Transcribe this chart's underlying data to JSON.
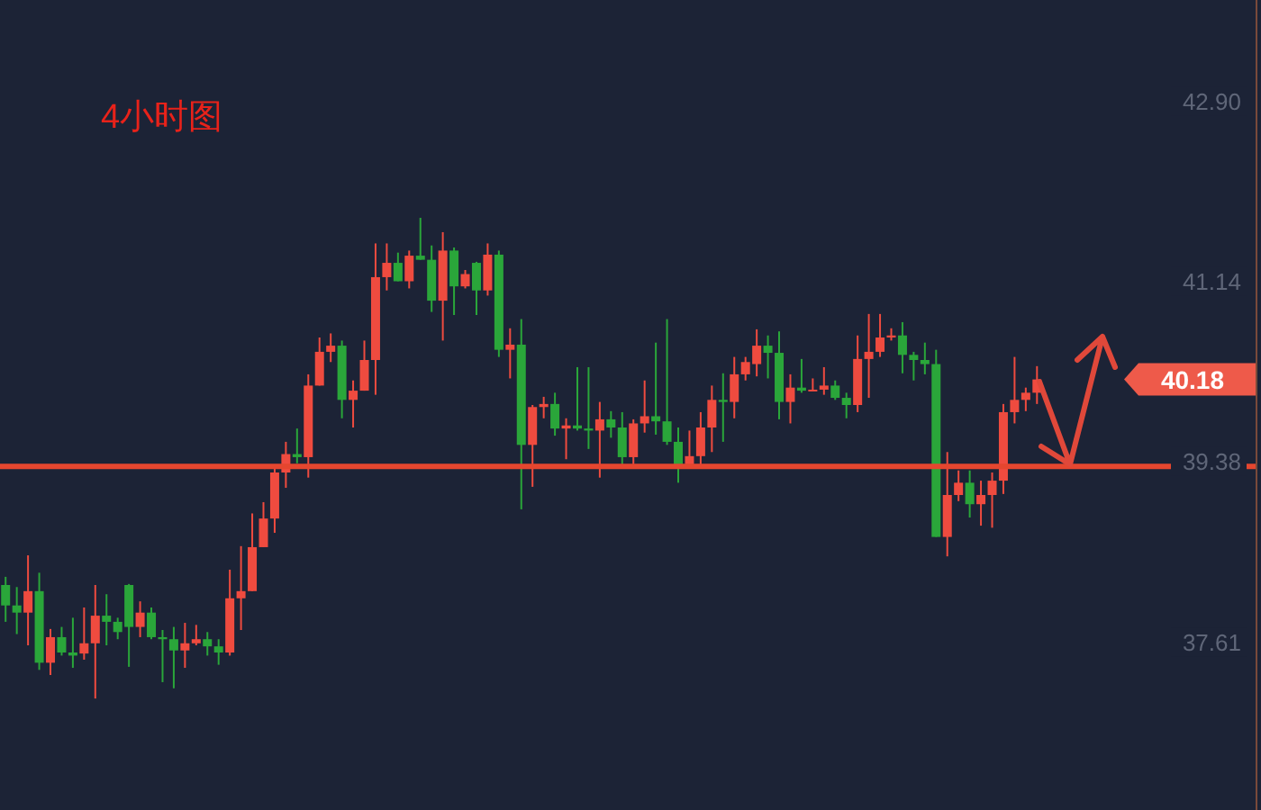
{
  "chart_data": {
    "type": "candlestick",
    "title": "4小时图",
    "categories": [
      null,
      null,
      null,
      null,
      null,
      null,
      null,
      null,
      null,
      null,
      null,
      null,
      null,
      null,
      null,
      null,
      null,
      null,
      null,
      null,
      null,
      null,
      null,
      null,
      null,
      null,
      null,
      null,
      null,
      null,
      null,
      null,
      null,
      null,
      null,
      null,
      null,
      null,
      null,
      null,
      null,
      null,
      null,
      null,
      null,
      null,
      null,
      null,
      null,
      null,
      null,
      null,
      null,
      null,
      null,
      null,
      null,
      null,
      null,
      null,
      null,
      null,
      null,
      null,
      null,
      null,
      null,
      null,
      null,
      null,
      null,
      null,
      null,
      null,
      null,
      null,
      null,
      null,
      null,
      null,
      null,
      null,
      null,
      null,
      null,
      null,
      null,
      null,
      null,
      null,
      null,
      null,
      null,
      null,
      null,
      null,
      null,
      null,
      null,
      null,
      null,
      null,
      null,
      null,
      null,
      null,
      null,
      null,
      null,
      null,
      null,
      null
    ],
    "ohlc": [
      [
        38.17,
        38.25,
        37.81,
        37.97
      ],
      [
        37.97,
        38.15,
        37.69,
        37.9
      ],
      [
        37.9,
        38.46,
        37.58,
        38.11
      ],
      [
        38.11,
        38.29,
        37.34,
        37.41
      ],
      [
        37.41,
        37.74,
        37.29,
        37.66
      ],
      [
        37.66,
        37.76,
        37.48,
        37.51
      ],
      [
        37.51,
        37.85,
        37.36,
        37.48
      ],
      [
        37.5,
        37.95,
        37.44,
        37.6
      ],
      [
        37.6,
        38.17,
        37.06,
        37.87
      ],
      [
        37.87,
        38.08,
        37.58,
        37.81
      ],
      [
        37.81,
        37.85,
        37.64,
        37.71
      ],
      [
        38.17,
        38.18,
        37.37,
        37.76
      ],
      [
        37.76,
        38.01,
        37.66,
        37.9
      ],
      [
        37.9,
        37.95,
        37.64,
        37.66
      ],
      [
        37.66,
        37.73,
        37.22,
        37.64
      ],
      [
        37.64,
        37.76,
        37.16,
        37.53
      ],
      [
        37.53,
        37.8,
        37.36,
        37.6
      ],
      [
        37.6,
        37.78,
        37.58,
        37.64
      ],
      [
        37.64,
        37.71,
        37.48,
        37.57
      ],
      [
        37.57,
        37.64,
        37.39,
        37.51
      ],
      [
        37.51,
        38.32,
        37.48,
        38.04
      ],
      [
        38.04,
        38.55,
        37.73,
        38.11
      ],
      [
        38.11,
        38.87,
        38.11,
        38.54
      ],
      [
        38.54,
        38.98,
        38.54,
        38.82
      ],
      [
        38.82,
        39.35,
        38.68,
        39.27
      ],
      [
        39.27,
        39.57,
        39.12,
        39.45
      ],
      [
        39.45,
        39.7,
        39.36,
        39.42
      ],
      [
        39.42,
        40.23,
        39.22,
        40.12
      ],
      [
        40.12,
        40.59,
        40.12,
        40.45
      ],
      [
        40.45,
        40.63,
        40.35,
        40.51
      ],
      [
        40.51,
        40.56,
        39.8,
        39.98
      ],
      [
        39.98,
        40.17,
        39.71,
        40.07
      ],
      [
        40.07,
        40.56,
        40.07,
        40.37
      ],
      [
        40.37,
        41.51,
        40.03,
        41.18
      ],
      [
        41.18,
        41.51,
        41.05,
        41.32
      ],
      [
        41.32,
        41.42,
        41.14,
        41.14
      ],
      [
        41.14,
        41.44,
        41.07,
        41.39
      ],
      [
        41.39,
        41.76,
        41.35,
        41.35
      ],
      [
        41.35,
        41.49,
        40.84,
        40.95
      ],
      [
        40.95,
        41.62,
        40.56,
        41.44
      ],
      [
        41.44,
        41.47,
        40.81,
        41.09
      ],
      [
        41.09,
        41.25,
        41.07,
        41.21
      ],
      [
        41.32,
        41.33,
        40.81,
        41.05
      ],
      [
        41.05,
        41.51,
        41.0,
        41.4
      ],
      [
        41.4,
        41.44,
        40.4,
        40.47
      ],
      [
        40.47,
        40.68,
        40.19,
        40.52
      ],
      [
        40.52,
        40.77,
        38.91,
        39.54
      ],
      [
        39.54,
        39.93,
        39.13,
        39.91
      ],
      [
        39.91,
        40.01,
        39.8,
        39.94
      ],
      [
        39.94,
        40.05,
        39.63,
        39.7
      ],
      [
        39.7,
        39.8,
        39.4,
        39.73
      ],
      [
        39.73,
        40.3,
        39.68,
        39.7
      ],
      [
        39.7,
        40.3,
        39.5,
        39.68
      ],
      [
        39.68,
        39.96,
        39.22,
        39.79
      ],
      [
        39.79,
        39.87,
        39.61,
        39.71
      ],
      [
        39.71,
        39.86,
        39.35,
        39.42
      ],
      [
        39.42,
        39.79,
        39.35,
        39.75
      ],
      [
        39.75,
        40.17,
        39.66,
        39.82
      ],
      [
        39.82,
        40.54,
        39.64,
        39.77
      ],
      [
        39.77,
        40.77,
        39.54,
        39.57
      ],
      [
        39.57,
        39.71,
        39.17,
        39.35
      ],
      [
        39.35,
        39.68,
        39.35,
        39.43
      ],
      [
        39.43,
        39.86,
        39.35,
        39.71
      ],
      [
        39.71,
        40.12,
        39.47,
        39.98
      ],
      [
        39.98,
        40.24,
        39.57,
        39.96
      ],
      [
        39.96,
        40.4,
        39.8,
        40.23
      ],
      [
        40.23,
        40.4,
        40.17,
        40.35
      ],
      [
        40.33,
        40.67,
        40.21,
        40.51
      ],
      [
        40.51,
        40.61,
        40.19,
        40.44
      ],
      [
        40.44,
        40.65,
        39.79,
        39.96
      ],
      [
        39.96,
        40.23,
        39.75,
        40.1
      ],
      [
        40.1,
        40.38,
        40.05,
        40.07
      ],
      [
        40.07,
        40.19,
        40.07,
        40.08
      ],
      [
        40.08,
        40.3,
        40.03,
        40.12
      ],
      [
        40.12,
        40.17,
        39.98,
        40.0
      ],
      [
        40.0,
        40.05,
        39.8,
        39.93
      ],
      [
        39.93,
        40.61,
        39.86,
        40.38
      ],
      [
        40.38,
        40.82,
        40.0,
        40.45
      ],
      [
        40.45,
        40.82,
        40.4,
        40.59
      ],
      [
        40.59,
        40.68,
        40.56,
        40.61
      ],
      [
        40.61,
        40.74,
        40.24,
        40.42
      ],
      [
        40.42,
        40.45,
        40.17,
        40.37
      ],
      [
        40.37,
        40.54,
        40.23,
        40.33
      ],
      [
        40.33,
        40.47,
        38.64,
        38.64
      ],
      [
        38.64,
        39.47,
        38.45,
        39.05
      ],
      [
        39.05,
        39.29,
        38.99,
        39.17
      ],
      [
        39.17,
        39.29,
        38.83,
        38.96
      ],
      [
        38.96,
        39.19,
        38.75,
        39.05
      ],
      [
        39.05,
        39.27,
        38.73,
        39.19
      ],
      [
        39.19,
        39.94,
        39.06,
        39.86
      ],
      [
        39.86,
        40.4,
        39.75,
        39.98
      ],
      [
        39.98,
        40.1,
        39.87,
        40.05
      ],
      [
        40.05,
        40.31,
        39.94,
        40.18
      ],
      null,
      null,
      null,
      null,
      null,
      null,
      null,
      null,
      null,
      null,
      null,
      null,
      null,
      null,
      null,
      null,
      null,
      null,
      null
    ],
    "colors": [
      "#2aa63a",
      "#2aa63a",
      "#ef4b3f",
      "#2aa63a",
      "#ef4b3f",
      "#2aa63a",
      "#2aa63a",
      "#ef4b3f",
      "#ef4b3f",
      "#2aa63a",
      "#2aa63a",
      "#2aa63a",
      "#ef4b3f",
      "#2aa63a",
      "#2aa63a",
      "#2aa63a",
      "#ef4b3f",
      "#ef4b3f",
      "#2aa63a",
      "#2aa63a",
      "#ef4b3f",
      "#ef4b3f",
      "#ef4b3f",
      "#ef4b3f",
      "#ef4b3f",
      "#ef4b3f",
      "#2aa63a",
      "#ef4b3f",
      "#ef4b3f",
      "#ef4b3f",
      "#2aa63a",
      "#ef4b3f",
      "#ef4b3f",
      "#ef4b3f",
      "#ef4b3f",
      "#2aa63a",
      "#ef4b3f",
      "#2aa63a",
      "#2aa63a",
      "#ef4b3f",
      "#2aa63a",
      "#ef4b3f",
      "#2aa63a",
      "#ef4b3f",
      "#2aa63a",
      "#ef4b3f",
      "#2aa63a",
      "#ef4b3f",
      "#ef4b3f",
      "#2aa63a",
      "#ef4b3f",
      "#2aa63a",
      "#2aa63a",
      "#ef4b3f",
      "#2aa63a",
      "#2aa63a",
      "#ef4b3f",
      "#ef4b3f",
      "#2aa63a",
      "#2aa63a",
      "#2aa63a",
      "#ef4b3f",
      "#ef4b3f",
      "#ef4b3f",
      "#2aa63a",
      "#ef4b3f",
      "#ef4b3f",
      "#ef4b3f",
      "#2aa63a",
      "#2aa63a",
      "#ef4b3f",
      "#2aa63a",
      "#ef4b3f",
      "#ef4b3f",
      "#2aa63a",
      "#2aa63a",
      "#ef4b3f",
      "#ef4b3f",
      "#ef4b3f",
      "#ef4b3f",
      "#2aa63a",
      "#2aa63a",
      "#2aa63a",
      "#2aa63a",
      "#ef4b3f",
      "#ef4b3f",
      "#2aa63a",
      "#ef4b3f",
      "#ef4b3f",
      "#ef4b3f",
      "#ef4b3f",
      "#ef4b3f",
      "#ef4b3f",
      null,
      null,
      null,
      null,
      null,
      null,
      null,
      null,
      null,
      null,
      null,
      null,
      null,
      null,
      null,
      null,
      null,
      null,
      null
    ],
    "ylim": [
      35.97,
      43.89
    ],
    "yticks": [
      37.61,
      39.38,
      41.14,
      {
        "value": 42.9,
        "label": "42.90"
      }
    ],
    "grid": false,
    "ref_lines": [
      {
        "axis": "y",
        "value": 39.33,
        "color": "#e5462f",
        "line_style": "solid"
      }
    ],
    "annotations": [
      "40.18"
    ]
  }
}
